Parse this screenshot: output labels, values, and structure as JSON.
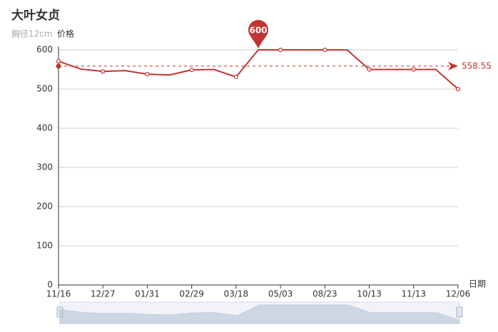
{
  "chart_data": {
    "type": "line",
    "title": "大叶女贞",
    "subtitle": "胸径12cm",
    "x_label": "日期",
    "categories": [
      "11/16",
      null,
      "12/27",
      null,
      "01/31",
      null,
      "02/29",
      null,
      "03/18",
      null,
      "05/03",
      null,
      "08/23",
      null,
      "10/13",
      null,
      "11/13",
      null,
      "12/06"
    ],
    "series": [
      {
        "name": "价格",
        "color": "#c23531",
        "values": [
          571,
          551,
          545,
          547,
          538,
          536,
          549,
          550,
          531,
          600,
          600,
          600,
          600,
          600,
          550,
          550,
          550,
          550,
          500
        ]
      }
    ],
    "ylim": [
      0,
      600
    ],
    "yticks": [
      0,
      100,
      200,
      300,
      400,
      500,
      600
    ],
    "grid": true,
    "mark_point": {
      "value": 600
    },
    "mark_line": {
      "value": 558.55
    }
  }
}
